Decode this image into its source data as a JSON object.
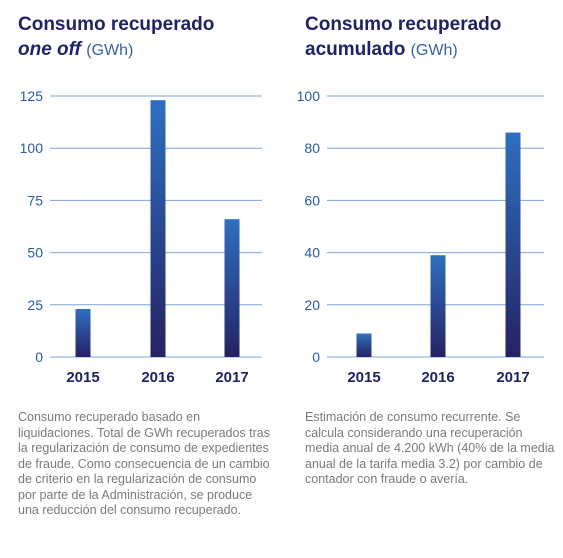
{
  "charts": [
    {
      "title_line1": "Consumo recuperado",
      "title_em": "one off",
      "title_unit": "(GWh)",
      "note": "Consumo recuperado basado en liquidaciones. Total de GWh recuperados tras la regularización de consumo de expedientes de fraude. Como consecuencia de un cambio de criterio en la regularización de consumo por parte de la Administración, se produce una reducción del consumo recuperado."
    },
    {
      "title_line1": "Consumo recuperado",
      "title_line2": "acumulado",
      "title_unit": "(GWh)",
      "note": "Estimación de consumo recurrente. Se calcula considerando una recuperación media anual de 4.200 kWh (40% de la media anual de la tarifa media 3.2) por cambio de contador con fraude o avería."
    }
  ],
  "chart_data": [
    {
      "type": "bar",
      "categories": [
        "2015",
        "2016",
        "2017"
      ],
      "values": [
        23,
        123,
        66
      ],
      "yticks": [
        0,
        25,
        50,
        75,
        100,
        125
      ],
      "ylim": [
        0,
        125
      ],
      "grid": true
    },
    {
      "type": "bar",
      "categories": [
        "2015",
        "2016",
        "2017"
      ],
      "values": [
        9,
        39,
        86
      ],
      "yticks": [
        0,
        20,
        40,
        60,
        80,
        100
      ],
      "ylim": [
        0,
        100
      ],
      "grid": true
    }
  ],
  "colors": {
    "bar_top": "#2e6fc0",
    "bar_bottom": "#262263",
    "grid": "#7fa3d6",
    "title": "#1f2363",
    "unit": "#3562a8"
  }
}
